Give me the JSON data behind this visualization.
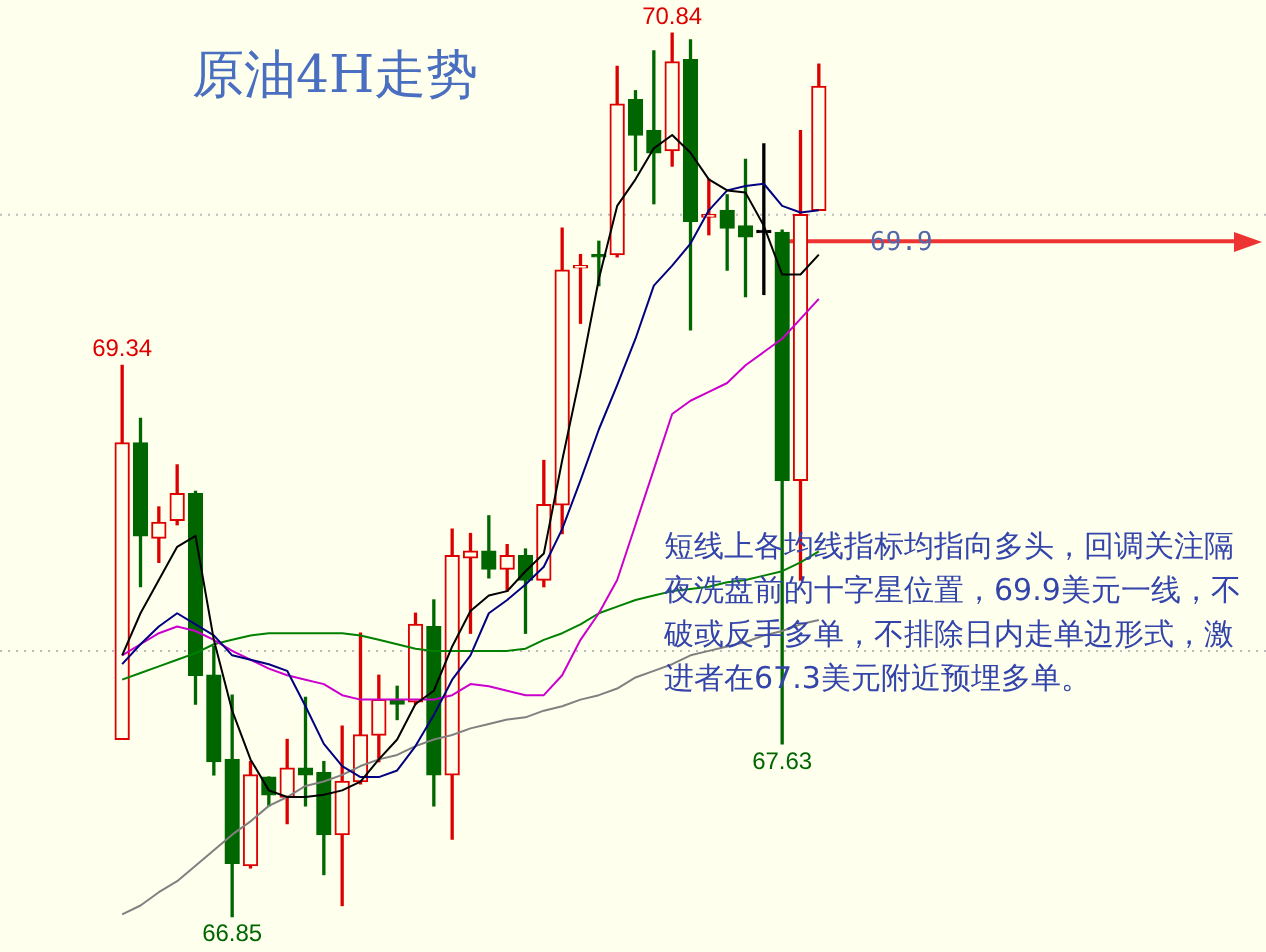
{
  "chart_data": {
    "type": "candlestick",
    "title": "原油4H走势",
    "categories": [
      null,
      null,
      null,
      null,
      null,
      null,
      null,
      null,
      null,
      null,
      null,
      null,
      null,
      null,
      null,
      null,
      null,
      null,
      null,
      null,
      null,
      null,
      null,
      null,
      null,
      null,
      null,
      null,
      null,
      null,
      null,
      null,
      null,
      null,
      null,
      null,
      null,
      null,
      null
    ],
    "ylim": [
      66.69,
      70.99
    ],
    "tick_labels": false,
    "ohlc": [
      [
        67.65,
        69.34,
        67.65,
        68.99
      ],
      [
        68.99,
        69.1,
        68.34,
        68.57
      ],
      [
        68.56,
        68.7,
        68.45,
        68.63
      ],
      [
        68.64,
        68.89,
        68.62,
        68.76
      ],
      [
        68.76,
        68.77,
        67.81,
        67.94
      ],
      [
        67.94,
        68.07,
        67.49,
        67.55
      ],
      [
        67.56,
        67.85,
        66.85,
        67.09
      ],
      [
        67.08,
        67.55,
        67.07,
        67.49
      ],
      [
        67.48,
        67.48,
        67.35,
        67.4
      ],
      [
        67.39,
        67.65,
        67.27,
        67.52
      ],
      [
        67.52,
        67.84,
        67.35,
        67.49
      ],
      [
        67.5,
        67.55,
        67.04,
        67.22
      ],
      [
        67.22,
        67.71,
        66.9,
        67.46
      ],
      [
        67.46,
        68.13,
        67.45,
        67.67
      ],
      [
        67.67,
        67.94,
        67.55,
        67.83
      ],
      [
        67.83,
        67.89,
        67.74,
        67.81
      ],
      [
        67.82,
        68.22,
        67.81,
        68.17
      ],
      [
        68.16,
        68.28,
        67.35,
        67.49
      ],
      [
        67.49,
        68.6,
        67.2,
        68.48
      ],
      [
        68.47,
        68.58,
        68.13,
        68.5
      ],
      [
        68.5,
        68.66,
        68.38,
        68.42
      ],
      [
        68.42,
        68.53,
        68.32,
        68.48
      ],
      [
        68.48,
        68.51,
        68.13,
        68.37
      ],
      [
        68.37,
        68.91,
        68.34,
        68.71
      ],
      [
        68.71,
        69.96,
        68.58,
        69.77
      ],
      [
        69.78,
        69.84,
        69.53,
        69.79
      ],
      [
        69.84,
        69.9,
        69.7,
        69.83
      ],
      [
        69.84,
        70.69,
        69.83,
        70.52
      ],
      [
        70.54,
        70.58,
        70.22,
        70.38
      ],
      [
        70.4,
        70.76,
        70.07,
        70.3
      ],
      [
        70.31,
        70.84,
        70.24,
        70.71
      ],
      [
        70.72,
        70.81,
        69.5,
        69.99
      ],
      [
        70.01,
        70.18,
        69.93,
        70.02
      ],
      [
        70.04,
        70.11,
        69.77,
        69.96
      ],
      [
        69.97,
        70.27,
        69.65,
        69.92
      ],
      [
        69.94,
        70.34,
        69.66,
        69.94
      ],
      [
        69.94,
        69.95,
        67.63,
        68.82
      ],
      [
        68.82,
        70.4,
        68.37,
        70.02
      ],
      [
        70.04,
        70.7,
        70.04,
        70.6
      ]
    ],
    "colors": [
      "#dd0000",
      "#006600",
      "#dd0000",
      "#dd0000",
      "#006600",
      "#006600",
      "#006600",
      "#dd0000",
      "#006600",
      "#dd0000",
      "#006600",
      "#006600",
      "#dd0000",
      "#dd0000",
      "#dd0000",
      "#006600",
      "#dd0000",
      "#006600",
      "#dd0000",
      "#dd0000",
      "#006600",
      "#dd0000",
      "#006600",
      "#dd0000",
      "#dd0000",
      "#dd0000",
      "#006600",
      "#dd0000",
      "#006600",
      "#006600",
      "#dd0000",
      "#006600",
      "#dd0000",
      "#006600",
      "#006600",
      "#000000",
      "#006600",
      "#dd0000",
      "#dd0000"
    ],
    "series": [
      {
        "type": "line",
        "color": "#000000",
        "values": [
          68.03,
          68.22,
          68.37,
          68.52,
          68.57,
          68.1,
          67.78,
          67.56,
          67.42,
          67.39,
          67.39,
          67.4,
          67.42,
          67.46,
          67.56,
          67.65,
          67.81,
          67.87,
          68.07,
          68.23,
          68.3,
          68.32,
          68.41,
          68.49,
          68.91,
          69.3,
          69.73,
          70.06,
          70.18,
          70.32,
          70.38,
          70.3,
          70.18,
          70.13,
          70.12,
          69.97,
          69.75,
          69.75,
          69.84
        ]
      },
      {
        "type": "line",
        "color": "#000080",
        "values": [
          67.99,
          68.08,
          68.16,
          68.22,
          68.17,
          68.12,
          68.03,
          68.01,
          67.99,
          67.96,
          67.8,
          67.63,
          67.53,
          67.48,
          67.48,
          67.51,
          67.62,
          67.76,
          67.92,
          68.03,
          68.22,
          68.28,
          68.35,
          68.43,
          68.6,
          68.82,
          69.05,
          69.25,
          69.46,
          69.7,
          69.79,
          69.89,
          70.04,
          70.13,
          70.15,
          70.16,
          70.06,
          70.03,
          70.04
        ]
      },
      {
        "type": "line",
        "color": "#cc00cc",
        "values": [
          68.03,
          68.08,
          68.13,
          68.16,
          68.14,
          68.1,
          68.05,
          68.01,
          67.97,
          67.94,
          67.92,
          67.9,
          67.85,
          67.83,
          67.83,
          67.83,
          67.83,
          67.83,
          67.85,
          67.9,
          67.89,
          67.87,
          67.85,
          67.85,
          67.94,
          68.1,
          68.22,
          68.37,
          68.62,
          68.87,
          69.12,
          69.18,
          69.22,
          69.26,
          69.34,
          69.4,
          69.46,
          69.55,
          69.64
        ]
      },
      {
        "type": "line",
        "color": "#008000",
        "values": [
          67.92,
          67.95,
          67.98,
          68.01,
          68.04,
          68.08,
          68.1,
          68.12,
          68.13,
          68.13,
          68.13,
          68.13,
          68.13,
          68.12,
          68.1,
          68.08,
          68.06,
          68.05,
          68.05,
          68.05,
          68.05,
          68.05,
          68.06,
          68.1,
          68.13,
          68.17,
          68.22,
          68.25,
          68.28,
          68.3,
          68.32,
          68.33,
          68.34,
          68.36,
          68.37,
          68.39,
          68.41,
          68.45,
          68.5
        ]
      },
      {
        "type": "line",
        "color": "#808080",
        "values": [
          66.86,
          66.9,
          66.96,
          67.01,
          67.08,
          67.15,
          67.22,
          67.28,
          67.35,
          67.39,
          67.44,
          67.46,
          67.49,
          67.53,
          67.56,
          67.58,
          67.62,
          67.65,
          67.67,
          67.7,
          67.72,
          67.74,
          67.75,
          67.78,
          67.8,
          67.83,
          67.85,
          67.88,
          67.93,
          67.96,
          67.99,
          68.03,
          68.05,
          68.07,
          68.09,
          68.12,
          68.14,
          68.17,
          68.19
        ]
      }
    ],
    "ref_lines": [
      {
        "axis": "y",
        "value": 69.9,
        "label": "69.9",
        "color": "#ee3333",
        "line_style": "solid"
      },
      {
        "axis": "y",
        "value": 70.02,
        "label": null,
        "color": "#bbbbbb",
        "line_style": "dotted"
      },
      {
        "axis": "y",
        "value": 68.05,
        "label": null,
        "color": "#bbbbbb",
        "line_style": "dotted"
      }
    ],
    "annotations": [
      {
        "text": "70.84",
        "y": 70.84
      },
      {
        "text": "69.34",
        "y": 69.34
      },
      {
        "text": "66.85",
        "y": 66.85
      },
      {
        "text": "67.63",
        "y": 67.63
      },
      "短线上各均线指标均指向多头，回调关注隔夜洗盘前的十字星位置，69.9美元一线，不破或反手多单，不排除日内走单边形式，激进者在67.3美元附近预埋多单。"
    ]
  }
}
